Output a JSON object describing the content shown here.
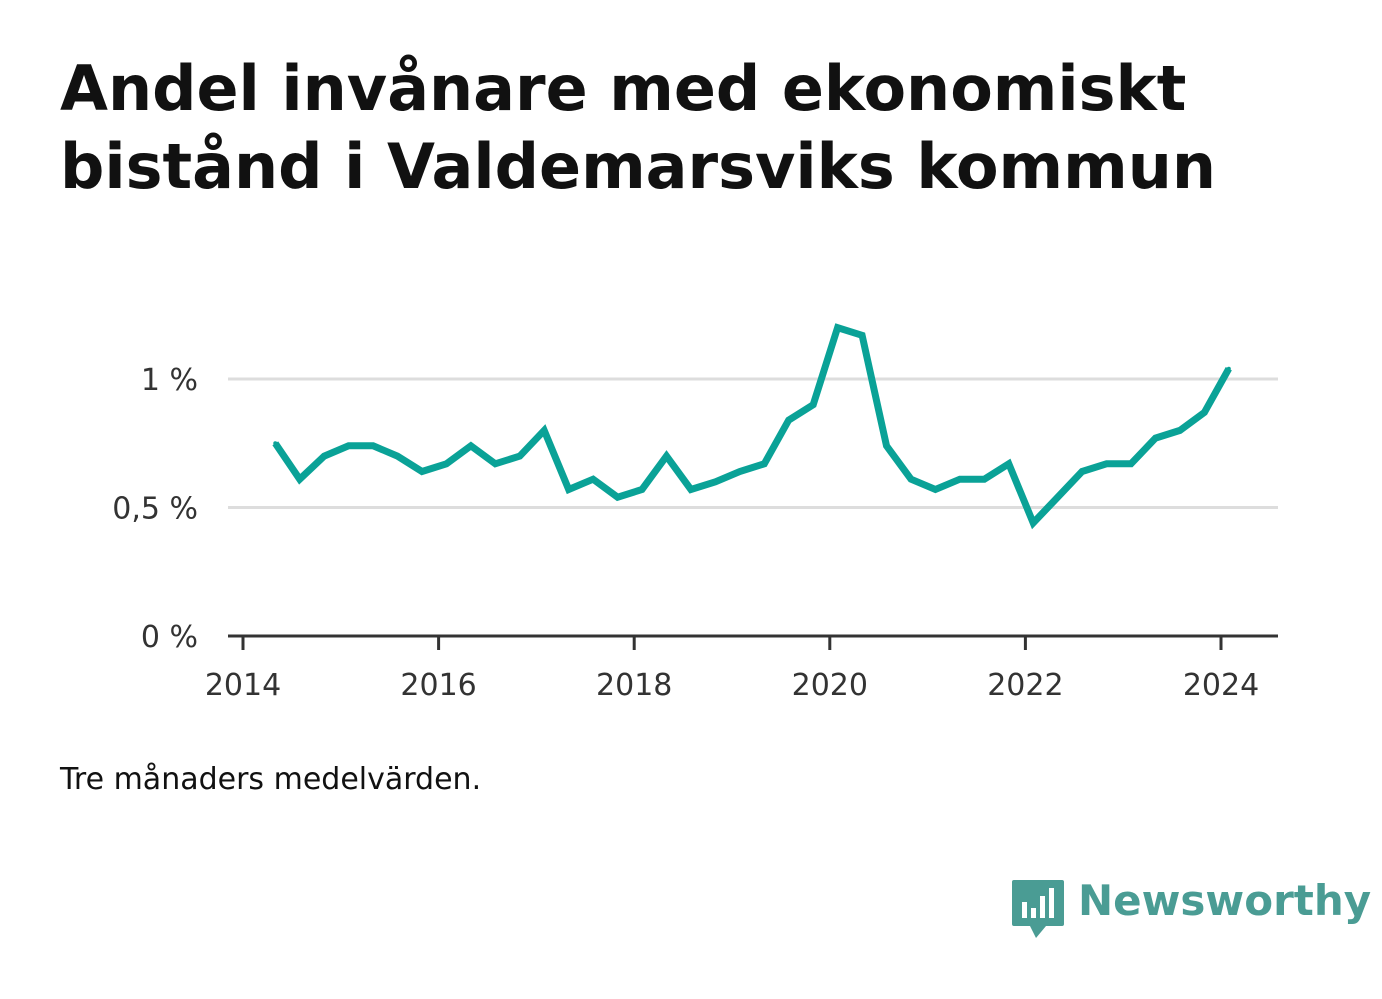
{
  "title": "Andel invånare med ekonomiskt bistånd i Valdemarsviks kommun",
  "caption": "Tre månaders medelvärden.",
  "brand": {
    "name": "Newsworthy",
    "color": "#4a9c94",
    "icon": "bar-chart-speech-bubble-icon"
  },
  "chart_data": {
    "type": "line",
    "line_color": "#0aa297",
    "grid": true,
    "yticks": [
      {
        "value": 0,
        "label": "0 %"
      },
      {
        "value": 0.5,
        "label": "0,5 %"
      },
      {
        "value": 1,
        "label": "1 %"
      }
    ],
    "xticks": [
      {
        "value": 2014,
        "label": "2014"
      },
      {
        "value": 2016,
        "label": "2016"
      },
      {
        "value": 2018,
        "label": "2018"
      },
      {
        "value": 2020,
        "label": "2020"
      },
      {
        "value": 2022,
        "label": "2022"
      },
      {
        "value": 2024,
        "label": "2024"
      }
    ],
    "xlim": [
      2014,
      2024.6
    ],
    "ylim": [
      0,
      1.3
    ],
    "series": [
      {
        "x": [
          2014.33,
          2014.58,
          2014.83,
          2015.08,
          2015.33,
          2015.58,
          2015.83,
          2016.08,
          2016.33,
          2016.58,
          2016.83,
          2017.08,
          2017.33,
          2017.58,
          2017.83,
          2018.08,
          2018.33,
          2018.58,
          2018.83,
          2019.08,
          2019.33,
          2019.58,
          2019.83,
          2020.08,
          2020.33,
          2020.58,
          2020.83,
          2021.08,
          2021.33,
          2021.58,
          2021.83,
          2022.08,
          2022.33,
          2022.58,
          2022.83,
          2023.08,
          2023.33,
          2023.58,
          2023.83,
          2024.08
        ],
        "values": [
          0.75,
          0.61,
          0.7,
          0.74,
          0.74,
          0.7,
          0.64,
          0.67,
          0.74,
          0.67,
          0.7,
          0.8,
          0.57,
          0.61,
          0.54,
          0.57,
          0.7,
          0.57,
          0.6,
          0.64,
          0.67,
          0.84,
          0.9,
          1.2,
          1.17,
          0.74,
          0.61,
          0.57,
          0.61,
          0.61,
          0.67,
          0.44,
          0.54,
          0.64,
          0.67,
          0.67,
          0.77,
          0.8,
          0.87,
          1.04
        ]
      }
    ]
  }
}
